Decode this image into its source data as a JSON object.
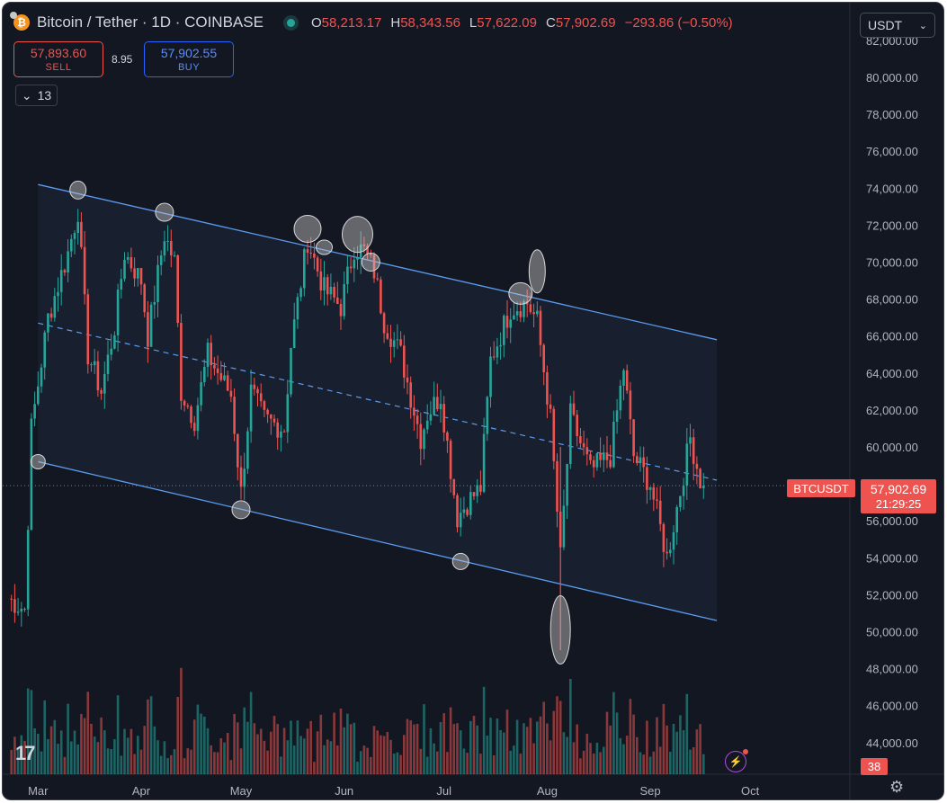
{
  "header": {
    "symbol_title": "Bitcoin / Tether · 1D · COINBASE",
    "ohlc": {
      "o_label": "O",
      "o_value": "58,213.17",
      "h_label": "H",
      "h_value": "58,343.56",
      "l_label": "L",
      "l_value": "57,622.09",
      "c_label": "C",
      "c_value": "57,902.69",
      "change": "−293.86 (−0.50%)"
    }
  },
  "trade": {
    "sell_price": "57,893.60",
    "sell_label": "SELL",
    "spread": "8.95",
    "buy_price": "57,902.55",
    "buy_label": "BUY"
  },
  "indicators_toggle": {
    "icon": "chevron-down-icon",
    "count": "13"
  },
  "currency_select": {
    "value": "USDT"
  },
  "price_axis": {
    "labels": [
      "82,000.00",
      "80,000.00",
      "78,000.00",
      "76,000.00",
      "74,000.00",
      "72,000.00",
      "70,000.00",
      "68,000.00",
      "66,000.00",
      "64,000.00",
      "62,000.00",
      "60,000.00",
      "58,000.00",
      "56,000.00",
      "54,000.00",
      "52,000.00",
      "50,000.00",
      "48,000.00",
      "46,000.00",
      "44,000.00"
    ]
  },
  "time_axis": {
    "labels": [
      "Mar",
      "Apr",
      "May",
      "Jun",
      "Jul",
      "Aug",
      "Sep",
      "Oct"
    ]
  },
  "price_badge": {
    "symbol": "BTCUSDT",
    "price": "57,902.69",
    "countdown": "21:29:25"
  },
  "volume_badge": "38",
  "logo_text": "17",
  "colors": {
    "up": "#26a69a",
    "down": "#ef5350",
    "channel": "#5b9cf0",
    "background": "#131722"
  },
  "chart_data": {
    "type": "candlestick",
    "symbol": "BTCUSDT",
    "timeframe": "1D",
    "y_range": [
      43000,
      82500
    ],
    "x_range": [
      "Feb 21",
      "Oct 1"
    ],
    "last_close": 57902.69,
    "channel": {
      "upper": [
        [
          "Mar 1",
          74200
        ],
        [
          "Sep 21",
          65800
        ]
      ],
      "lower": [
        [
          "Mar 1",
          59200
        ],
        [
          "Sep 21",
          50600
        ]
      ]
    },
    "waypoints": [
      [
        "Feb 21",
        51800
      ],
      [
        "Feb 26",
        51200
      ],
      [
        "Feb 28",
        61000
      ],
      [
        "Mar 4",
        67000
      ],
      [
        "Mar 10",
        70500
      ],
      [
        "Mar 13",
        72800
      ],
      [
        "Mar 16",
        65000
      ],
      [
        "Mar 20",
        63000
      ],
      [
        "Mar 24",
        66500
      ],
      [
        "Mar 27",
        70500
      ],
      [
        "Apr 1",
        69000
      ],
      [
        "Apr 3",
        66000
      ],
      [
        "Apr 8",
        71500
      ],
      [
        "Apr 11",
        70000
      ],
      [
        "Apr 13",
        63000
      ],
      [
        "Apr 17",
        61500
      ],
      [
        "Apr 21",
        65000
      ],
      [
        "Apr 24",
        64000
      ],
      [
        "Apr 28",
        62800
      ],
      [
        "May 1",
        57500
      ],
      [
        "May 4",
        63000
      ],
      [
        "May 8",
        61500
      ],
      [
        "May 14",
        61000
      ],
      [
        "May 16",
        65500
      ],
      [
        "May 21",
        71200
      ],
      [
        "May 26",
        68500
      ],
      [
        "May 31",
        67600
      ],
      [
        "Jun 4",
        70800
      ],
      [
        "Jun 7",
        70600
      ],
      [
        "Jun 10",
        69500
      ],
      [
        "Jun 13",
        66800
      ],
      [
        "Jun 18",
        65000
      ],
      [
        "Jun 24",
        60500
      ],
      [
        "Jun 26",
        61800
      ],
      [
        "Jun 30",
        62800
      ],
      [
        "Jul 5",
        56200
      ],
      [
        "Jul 8",
        57000
      ],
      [
        "Jul 12",
        57800
      ],
      [
        "Jul 15",
        64700
      ],
      [
        "Jul 21",
        67500
      ],
      [
        "Jul 26",
        67800
      ],
      [
        "Jul 29",
        66800
      ],
      [
        "Aug 2",
        61500
      ],
      [
        "Aug 5",
        54000
      ],
      [
        "Aug 8",
        61700
      ],
      [
        "Aug 14",
        58700
      ],
      [
        "Aug 20",
        59500
      ],
      [
        "Aug 24",
        64300
      ],
      [
        "Aug 27",
        59500
      ],
      [
        "Sep 1",
        58000
      ],
      [
        "Sep 6",
        54000
      ],
      [
        "Sep 10",
        57600
      ],
      [
        "Sep 13",
        60500
      ],
      [
        "Sep 16",
        58200
      ],
      [
        "Sep 17",
        57903
      ]
    ]
  }
}
